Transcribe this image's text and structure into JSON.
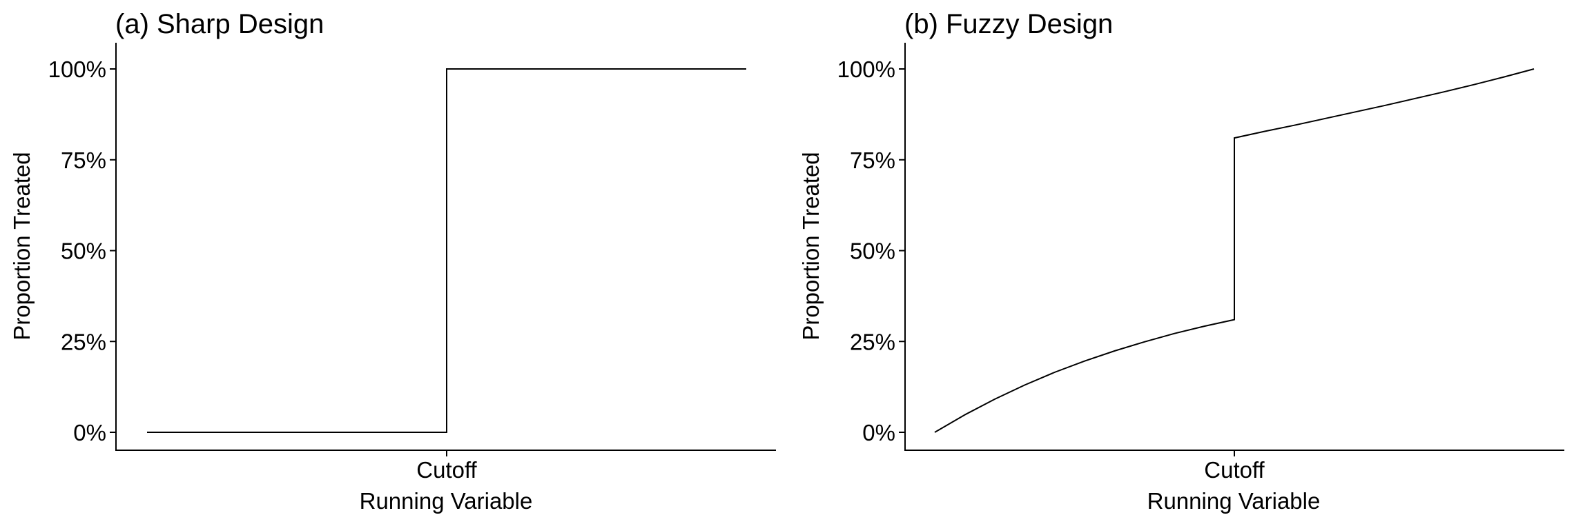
{
  "chart_data": [
    {
      "type": "line",
      "title": "(a) Sharp Design",
      "xlabel": "Running Variable",
      "ylabel": "Proportion Treated",
      "x_ticks": [
        {
          "x": 0,
          "label": "Cutoff"
        }
      ],
      "y_ticks": [
        {
          "y": 0,
          "label": "0%"
        },
        {
          "y": 0.25,
          "label": "25%"
        },
        {
          "y": 0.5,
          "label": "50%"
        },
        {
          "y": 0.75,
          "label": "75%"
        },
        {
          "y": 1,
          "label": "100%"
        }
      ],
      "xlim": [
        -1,
        1
      ],
      "ylim": [
        0,
        1
      ],
      "grid": false,
      "legend": "none",
      "color": "#000000",
      "series": [
        {
          "x": [
            -1,
            0,
            0,
            1
          ],
          "y": [
            0,
            0,
            1,
            1
          ]
        }
      ]
    },
    {
      "type": "line",
      "title": "(b) Fuzzy Design",
      "xlabel": "Running Variable",
      "ylabel": "Proportion Treated",
      "x_ticks": [
        {
          "x": 0,
          "label": "Cutoff"
        }
      ],
      "y_ticks": [
        {
          "y": 0,
          "label": "0%"
        },
        {
          "y": 0.25,
          "label": "25%"
        },
        {
          "y": 0.5,
          "label": "50%"
        },
        {
          "y": 0.75,
          "label": "75%"
        },
        {
          "y": 1,
          "label": "100%"
        }
      ],
      "xlim": [
        -1,
        1
      ],
      "ylim": [
        0,
        1
      ],
      "grid": false,
      "legend": "none",
      "color": "#000000",
      "series": [
        {
          "x": [
            -1,
            -0.9,
            -0.8,
            -0.7,
            -0.6,
            -0.5,
            -0.4,
            -0.3,
            -0.2,
            -0.1,
            0,
            0,
            0.1,
            0.2,
            0.3,
            0.4,
            0.5,
            0.6,
            0.7,
            0.8,
            0.9,
            1
          ],
          "y": [
            0,
            0.048,
            0.091,
            0.13,
            0.165,
            0.196,
            0.224,
            0.249,
            0.272,
            0.292,
            0.31,
            0.81,
            0.828,
            0.845,
            0.863,
            0.881,
            0.899,
            0.918,
            0.937,
            0.957,
            0.978,
            1.0
          ]
        }
      ]
    }
  ]
}
